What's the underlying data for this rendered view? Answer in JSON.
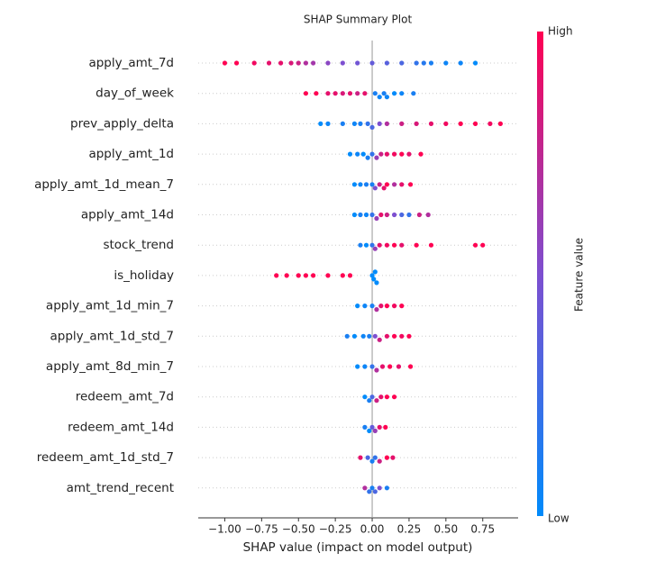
{
  "chart_data": {
    "type": "beeswarm",
    "title": "SHAP Summary Plot",
    "x_label": "SHAP value (impact on model output)",
    "xlim": [
      -1.18,
      0.99
    ],
    "xticks": [
      {
        "value": -1,
        "label": "−1.00"
      },
      {
        "value": -0.75,
        "label": "−0.75"
      },
      {
        "value": -0.5,
        "label": "−0.50"
      },
      {
        "value": -0.25,
        "label": "−0.25"
      },
      {
        "value": 0,
        "label": "0.00"
      },
      {
        "value": 0.25,
        "label": "0.25"
      },
      {
        "value": 0.5,
        "label": "0.50"
      },
      {
        "value": 0.75,
        "label": "0.75"
      }
    ],
    "grid": true,
    "colormap": [
      "#008bfb",
      "#7d4fd0",
      "#ff0052"
    ],
    "colorbar": {
      "label": "Feature value",
      "high": "High",
      "low": "Low"
    },
    "series": [
      {
        "name": "apply_amt_7d",
        "shap": [
          -1.0,
          -0.92,
          -0.8,
          -0.7,
          -0.62,
          -0.55,
          -0.5,
          -0.45,
          -0.4,
          -0.3,
          -0.2,
          -0.1,
          0,
          0.1,
          0.2,
          0.3,
          0.35,
          0.4,
          0.5,
          0.6,
          0.7
        ],
        "feature": [
          1,
          1,
          0.95,
          0.9,
          0.9,
          0.85,
          0.8,
          0.7,
          0.65,
          0.55,
          0.5,
          0.45,
          0.4,
          0.35,
          0.3,
          0.2,
          0.15,
          0.1,
          0.05,
          0.05,
          0
        ]
      },
      {
        "name": "day_of_week",
        "shap": [
          -0.45,
          -0.38,
          -0.3,
          -0.25,
          -0.2,
          -0.15,
          -0.1,
          -0.05,
          0.02,
          0.05,
          0.08,
          0.1,
          0.15,
          0.2,
          0.28
        ],
        "feature": [
          1,
          1,
          0.9,
          0.9,
          0.85,
          0.9,
          0.8,
          0.9,
          0.1,
          0.05,
          0.1,
          0.05,
          0,
          0.05,
          0.1
        ]
      },
      {
        "name": "prev_apply_delta",
        "shap": [
          -0.35,
          -0.3,
          -0.2,
          -0.12,
          -0.08,
          -0.03,
          0,
          0.05,
          0.1,
          0.2,
          0.3,
          0.4,
          0.5,
          0.6,
          0.7,
          0.8,
          0.87
        ],
        "feature": [
          0,
          0.05,
          0.1,
          0.05,
          0.1,
          0.2,
          0.3,
          0.5,
          0.7,
          0.8,
          0.85,
          0.9,
          0.95,
          1,
          1,
          0.95,
          1
        ]
      },
      {
        "name": "apply_amt_1d",
        "shap": [
          -0.15,
          -0.1,
          -0.06,
          -0.03,
          0,
          0.03,
          0.06,
          0.1,
          0.15,
          0.2,
          0.25,
          0.33
        ],
        "feature": [
          0,
          0.05,
          0,
          0.1,
          0.2,
          0.6,
          0.8,
          0.9,
          0.95,
          1,
          0.9,
          1
        ]
      },
      {
        "name": "apply_amt_1d_mean_7",
        "shap": [
          -0.12,
          -0.08,
          -0.04,
          0,
          0.02,
          0.05,
          0.08,
          0.1,
          0.15,
          0.2,
          0.26
        ],
        "feature": [
          0,
          0.05,
          0.1,
          0.1,
          0.5,
          0.8,
          0.9,
          1,
          0.7,
          0.9,
          1
        ]
      },
      {
        "name": "apply_amt_14d",
        "shap": [
          -0.12,
          -0.08,
          -0.04,
          0,
          0.03,
          0.06,
          0.1,
          0.15,
          0.2,
          0.25,
          0.32,
          0.38
        ],
        "feature": [
          0,
          0.1,
          0.05,
          0.2,
          0.6,
          0.9,
          0.8,
          0.5,
          0.3,
          0.2,
          0.8,
          0.7
        ]
      },
      {
        "name": "stock_trend",
        "shap": [
          -0.08,
          -0.04,
          0,
          0.02,
          0.05,
          0.1,
          0.15,
          0.2,
          0.3,
          0.4,
          0.7,
          0.75
        ],
        "feature": [
          0.1,
          0,
          0.2,
          0.6,
          0.9,
          0.95,
          1,
          0.9,
          1,
          1,
          1,
          1
        ]
      },
      {
        "name": "is_holiday",
        "shap": [
          -0.65,
          -0.58,
          -0.5,
          -0.45,
          -0.4,
          -0.3,
          -0.2,
          -0.15,
          0,
          0.01,
          0.02,
          0.03
        ],
        "feature": [
          1,
          1,
          1,
          1,
          1,
          1,
          1,
          1,
          0,
          0,
          0,
          0
        ]
      },
      {
        "name": "apply_amt_1d_min_7",
        "shap": [
          -0.1,
          -0.05,
          0,
          0.03,
          0.06,
          0.1,
          0.15,
          0.2
        ],
        "feature": [
          0,
          0.05,
          0.1,
          0.7,
          0.9,
          1,
          0.95,
          1
        ]
      },
      {
        "name": "apply_amt_1d_std_7",
        "shap": [
          -0.17,
          -0.12,
          -0.06,
          -0.02,
          0.02,
          0.05,
          0.1,
          0.15,
          0.2,
          0.25
        ],
        "feature": [
          0.1,
          0,
          0.05,
          0.1,
          0.5,
          0.8,
          0.9,
          1,
          0.95,
          1
        ]
      },
      {
        "name": "apply_amt_8d_min_7",
        "shap": [
          -0.1,
          -0.05,
          0,
          0.03,
          0.07,
          0.12,
          0.18,
          0.26
        ],
        "feature": [
          0,
          0.05,
          0.2,
          0.7,
          0.9,
          1,
          0.9,
          1
        ]
      },
      {
        "name": "redeem_amt_7d",
        "shap": [
          -0.05,
          -0.02,
          0,
          0.03,
          0.06,
          0.1,
          0.15
        ],
        "feature": [
          0,
          0.1,
          0.3,
          0.8,
          0.9,
          1,
          1
        ]
      },
      {
        "name": "redeem_amt_14d",
        "shap": [
          -0.05,
          -0.02,
          0,
          0.02,
          0.05,
          0.09
        ],
        "feature": [
          0.1,
          0,
          0.4,
          0.6,
          0.9,
          1
        ]
      },
      {
        "name": "redeem_amt_1d_std_7",
        "shap": [
          -0.08,
          -0.03,
          0,
          0.02,
          0.05,
          0.1,
          0.14
        ],
        "feature": [
          0.9,
          0.3,
          0.1,
          0.2,
          0.8,
          1,
          0.9
        ]
      },
      {
        "name": "amt_trend_recent",
        "shap": [
          -0.05,
          -0.02,
          0,
          0.02,
          0.05,
          0.1
        ],
        "feature": [
          0.7,
          0.2,
          0.1,
          0.3,
          0.5,
          0.1
        ]
      }
    ]
  }
}
